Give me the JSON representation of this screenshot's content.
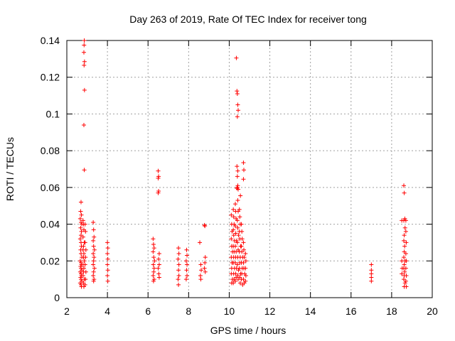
{
  "chart_data": {
    "type": "scatter",
    "title": "Day 263 of 2019, Rate Of TEC Index for receiver tong",
    "xlabel": "GPS time / hours",
    "ylabel": "ROTI / TECUs",
    "xlim": [
      2,
      20
    ],
    "ylim": [
      0,
      0.14
    ],
    "xticks": [
      "2",
      "4",
      "6",
      "8",
      "10",
      "12",
      "14",
      "16",
      "18",
      "20"
    ],
    "yticks": [
      "0",
      "0.02",
      "0.04",
      "0.06",
      "0.08",
      "0.1",
      "0.12",
      "0.14"
    ],
    "grid": true,
    "marker": "plus",
    "series_color": "#ff0000",
    "series": [
      {
        "name": "ROTI",
        "points": [
          [
            2.7,
            0.052
          ],
          [
            2.68,
            0.047
          ],
          [
            2.72,
            0.045
          ],
          [
            2.66,
            0.043
          ],
          [
            2.7,
            0.041
          ],
          [
            2.74,
            0.04
          ],
          [
            2.68,
            0.038
          ],
          [
            2.72,
            0.036
          ],
          [
            2.7,
            0.034
          ],
          [
            2.66,
            0.032
          ],
          [
            2.7,
            0.03
          ],
          [
            2.72,
            0.028
          ],
          [
            2.68,
            0.026
          ],
          [
            2.7,
            0.024
          ],
          [
            2.74,
            0.022
          ],
          [
            2.66,
            0.02
          ],
          [
            2.7,
            0.019
          ],
          [
            2.72,
            0.018
          ],
          [
            2.68,
            0.017
          ],
          [
            2.7,
            0.016
          ],
          [
            2.74,
            0.015
          ],
          [
            2.66,
            0.014
          ],
          [
            2.7,
            0.013
          ],
          [
            2.72,
            0.012
          ],
          [
            2.68,
            0.011
          ],
          [
            2.7,
            0.01
          ],
          [
            2.74,
            0.009
          ],
          [
            2.66,
            0.008
          ],
          [
            2.7,
            0.007
          ],
          [
            2.72,
            0.006
          ],
          [
            2.8,
            0.042
          ],
          [
            2.82,
            0.04
          ],
          [
            2.84,
            0.037
          ],
          [
            2.8,
            0.033
          ],
          [
            2.86,
            0.03
          ],
          [
            2.82,
            0.028
          ],
          [
            2.8,
            0.026
          ],
          [
            2.84,
            0.024
          ],
          [
            2.82,
            0.022
          ],
          [
            2.86,
            0.02
          ],
          [
            2.8,
            0.018
          ],
          [
            2.84,
            0.016
          ],
          [
            2.82,
            0.014
          ],
          [
            2.8,
            0.012
          ],
          [
            2.86,
            0.01
          ],
          [
            2.82,
            0.008
          ],
          [
            2.84,
            0.006
          ],
          [
            2.9,
            0.04
          ],
          [
            2.92,
            0.036
          ],
          [
            2.9,
            0.03
          ],
          [
            2.94,
            0.026
          ],
          [
            2.92,
            0.022
          ],
          [
            2.9,
            0.018
          ],
          [
            2.94,
            0.014
          ],
          [
            2.92,
            0.01
          ],
          [
            2.9,
            0.007
          ],
          [
            2.86,
            0.14
          ],
          [
            2.85,
            0.1375
          ],
          [
            2.84,
            0.1335
          ],
          [
            2.87,
            0.1285
          ],
          [
            2.85,
            0.1265
          ],
          [
            2.87,
            0.113
          ],
          [
            2.84,
            0.094
          ],
          [
            2.86,
            0.0695
          ],
          [
            3.3,
            0.041
          ],
          [
            3.32,
            0.037
          ],
          [
            3.34,
            0.033
          ],
          [
            3.3,
            0.031
          ],
          [
            3.32,
            0.028
          ],
          [
            3.36,
            0.026
          ],
          [
            3.3,
            0.024
          ],
          [
            3.34,
            0.022
          ],
          [
            3.32,
            0.02
          ],
          [
            3.3,
            0.018
          ],
          [
            3.36,
            0.016
          ],
          [
            3.32,
            0.014
          ],
          [
            3.3,
            0.012
          ],
          [
            3.34,
            0.01
          ],
          [
            3.32,
            0.009
          ],
          [
            4.0,
            0.03
          ],
          [
            4.02,
            0.027
          ],
          [
            4.0,
            0.024
          ],
          [
            4.02,
            0.021
          ],
          [
            4.0,
            0.018
          ],
          [
            4.02,
            0.015
          ],
          [
            4.0,
            0.012
          ],
          [
            4.02,
            0.009
          ],
          [
            6.25,
            0.032
          ],
          [
            6.27,
            0.029
          ],
          [
            6.3,
            0.027
          ],
          [
            6.25,
            0.025
          ],
          [
            6.28,
            0.022
          ],
          [
            6.32,
            0.02
          ],
          [
            6.26,
            0.018
          ],
          [
            6.3,
            0.016
          ],
          [
            6.28,
            0.014
          ],
          [
            6.25,
            0.012
          ],
          [
            6.3,
            0.01
          ],
          [
            6.27,
            0.009
          ],
          [
            6.5,
            0.069
          ],
          [
            6.52,
            0.066
          ],
          [
            6.5,
            0.065
          ],
          [
            6.52,
            0.058
          ],
          [
            6.5,
            0.057
          ],
          [
            6.55,
            0.024
          ],
          [
            6.52,
            0.021
          ],
          [
            6.55,
            0.018
          ],
          [
            6.5,
            0.016
          ],
          [
            6.53,
            0.013
          ],
          [
            6.55,
            0.011
          ],
          [
            7.5,
            0.027
          ],
          [
            7.52,
            0.024
          ],
          [
            7.48,
            0.021
          ],
          [
            7.52,
            0.018
          ],
          [
            7.5,
            0.015
          ],
          [
            7.52,
            0.012
          ],
          [
            7.48,
            0.01
          ],
          [
            7.5,
            0.007
          ],
          [
            7.9,
            0.026
          ],
          [
            7.92,
            0.023
          ],
          [
            7.88,
            0.02
          ],
          [
            7.92,
            0.018
          ],
          [
            7.9,
            0.015
          ],
          [
            7.92,
            0.012
          ],
          [
            7.88,
            0.01
          ],
          [
            8.55,
            0.03
          ],
          [
            8.6,
            0.018
          ],
          [
            8.62,
            0.015
          ],
          [
            8.58,
            0.012
          ],
          [
            8.6,
            0.01
          ],
          [
            8.8,
            0.039
          ],
          [
            8.78,
            0.0395
          ],
          [
            8.82,
            0.022
          ],
          [
            8.8,
            0.019
          ],
          [
            8.78,
            0.016
          ],
          [
            8.82,
            0.014
          ],
          [
            10.1,
            0.045
          ],
          [
            10.12,
            0.04
          ],
          [
            10.14,
            0.036
          ],
          [
            10.1,
            0.032
          ],
          [
            10.12,
            0.028
          ],
          [
            10.16,
            0.025
          ],
          [
            10.1,
            0.022
          ],
          [
            10.14,
            0.019
          ],
          [
            10.12,
            0.016
          ],
          [
            10.1,
            0.013
          ],
          [
            10.16,
            0.01
          ],
          [
            10.12,
            0.008
          ],
          [
            10.2,
            0.048
          ],
          [
            10.22,
            0.044
          ],
          [
            10.24,
            0.04
          ],
          [
            10.2,
            0.037
          ],
          [
            10.22,
            0.034
          ],
          [
            10.26,
            0.031
          ],
          [
            10.2,
            0.028
          ],
          [
            10.24,
            0.025
          ],
          [
            10.22,
            0.022
          ],
          [
            10.2,
            0.019
          ],
          [
            10.26,
            0.016
          ],
          [
            10.22,
            0.013
          ],
          [
            10.24,
            0.01
          ],
          [
            10.2,
            0.008
          ],
          [
            10.3,
            0.051
          ],
          [
            10.32,
            0.047
          ],
          [
            10.34,
            0.043
          ],
          [
            10.3,
            0.039
          ],
          [
            10.32,
            0.035
          ],
          [
            10.36,
            0.031
          ],
          [
            10.3,
            0.028
          ],
          [
            10.34,
            0.025
          ],
          [
            10.32,
            0.022
          ],
          [
            10.3,
            0.019
          ],
          [
            10.36,
            0.016
          ],
          [
            10.32,
            0.013
          ],
          [
            10.34,
            0.011
          ],
          [
            10.3,
            0.009
          ],
          [
            10.4,
            0.06
          ],
          [
            10.42,
            0.053
          ],
          [
            10.44,
            0.047
          ],
          [
            10.4,
            0.042
          ],
          [
            10.42,
            0.038
          ],
          [
            10.46,
            0.034
          ],
          [
            10.4,
            0.03
          ],
          [
            10.44,
            0.026
          ],
          [
            10.42,
            0.022
          ],
          [
            10.4,
            0.018
          ],
          [
            10.46,
            0.015
          ],
          [
            10.42,
            0.012
          ],
          [
            10.44,
            0.01
          ],
          [
            10.5,
            0.048
          ],
          [
            10.52,
            0.044
          ],
          [
            10.54,
            0.04
          ],
          [
            10.5,
            0.036
          ],
          [
            10.52,
            0.032
          ],
          [
            10.56,
            0.028
          ],
          [
            10.5,
            0.025
          ],
          [
            10.54,
            0.022
          ],
          [
            10.52,
            0.019
          ],
          [
            10.5,
            0.016
          ],
          [
            10.56,
            0.013
          ],
          [
            10.52,
            0.011
          ],
          [
            10.54,
            0.008
          ],
          [
            10.6,
            0.04
          ],
          [
            10.62,
            0.036
          ],
          [
            10.64,
            0.032
          ],
          [
            10.6,
            0.028
          ],
          [
            10.62,
            0.025
          ],
          [
            10.66,
            0.022
          ],
          [
            10.6,
            0.019
          ],
          [
            10.64,
            0.016
          ],
          [
            10.62,
            0.013
          ],
          [
            10.6,
            0.01
          ],
          [
            10.66,
            0.007
          ],
          [
            10.7,
            0.03
          ],
          [
            10.72,
            0.026
          ],
          [
            10.74,
            0.022
          ],
          [
            10.7,
            0.019
          ],
          [
            10.72,
            0.016
          ],
          [
            10.76,
            0.013
          ],
          [
            10.7,
            0.01
          ],
          [
            10.74,
            0.008
          ],
          [
            10.8,
            0.024
          ],
          [
            10.82,
            0.02
          ],
          [
            10.8,
            0.016
          ],
          [
            10.82,
            0.012
          ],
          [
            10.8,
            0.009
          ],
          [
            10.35,
            0.1305
          ],
          [
            10.38,
            0.1125
          ],
          [
            10.4,
            0.111
          ],
          [
            10.42,
            0.105
          ],
          [
            10.44,
            0.102
          ],
          [
            10.4,
            0.0985
          ],
          [
            10.38,
            0.0715
          ],
          [
            10.42,
            0.069
          ],
          [
            10.4,
            0.066
          ],
          [
            10.42,
            0.061
          ],
          [
            10.38,
            0.0595
          ],
          [
            10.44,
            0.059
          ],
          [
            10.55,
            0.0555
          ],
          [
            10.7,
            0.0735
          ],
          [
            10.72,
            0.0695
          ],
          [
            10.7,
            0.0645
          ],
          [
            17.0,
            0.018
          ],
          [
            17.0,
            0.015
          ],
          [
            17.0,
            0.013
          ],
          [
            17.0,
            0.011
          ],
          [
            17.0,
            0.009
          ],
          [
            18.5,
            0.042
          ],
          [
            18.5,
            0.02
          ],
          [
            18.52,
            0.016
          ],
          [
            18.5,
            0.013
          ],
          [
            18.6,
            0.061
          ],
          [
            18.62,
            0.057
          ],
          [
            18.65,
            0.043
          ],
          [
            18.6,
            0.042
          ],
          [
            18.66,
            0.038
          ],
          [
            18.62,
            0.034
          ],
          [
            18.6,
            0.031
          ],
          [
            18.64,
            0.028
          ],
          [
            18.62,
            0.025
          ],
          [
            18.6,
            0.022
          ],
          [
            18.66,
            0.02
          ],
          [
            18.62,
            0.018
          ],
          [
            18.6,
            0.016
          ],
          [
            18.64,
            0.014
          ],
          [
            18.62,
            0.012
          ],
          [
            18.6,
            0.01
          ],
          [
            18.66,
            0.008
          ],
          [
            18.62,
            0.006
          ],
          [
            18.7,
            0.042
          ],
          [
            18.7,
            0.036
          ],
          [
            18.72,
            0.03
          ],
          [
            18.7,
            0.024
          ],
          [
            18.72,
            0.02
          ],
          [
            18.7,
            0.016
          ],
          [
            18.72,
            0.012
          ],
          [
            18.7,
            0.009
          ],
          [
            18.72,
            0.006
          ]
        ]
      }
    ]
  }
}
